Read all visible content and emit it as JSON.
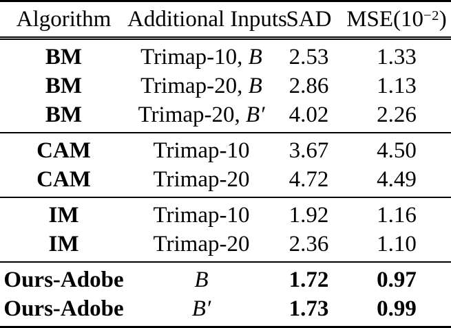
{
  "table": {
    "headers": {
      "algorithm": "Algorithm",
      "inputs": "Additional Inputs",
      "sad": "SAD",
      "mse_pre": "MSE(10",
      "mse_sup": "−2",
      "mse_post": ")"
    },
    "sections": [
      {
        "rows": [
          {
            "algorithm": "BM",
            "inputs_text": "Trimap-10, ",
            "inputs_math": "B",
            "sad": "2.53",
            "mse": "1.33"
          },
          {
            "algorithm": "BM",
            "inputs_text": "Trimap-20, ",
            "inputs_math": "B",
            "sad": "2.86",
            "mse": "1.13"
          },
          {
            "algorithm": "BM",
            "inputs_text": "Trimap-20, ",
            "inputs_math": "B′",
            "sad": "4.02",
            "mse": "2.26"
          }
        ]
      },
      {
        "rows": [
          {
            "algorithm": "CAM",
            "inputs_text": "Trimap-10",
            "sad": "3.67",
            "mse": "4.50"
          },
          {
            "algorithm": "CAM",
            "inputs_text": "Trimap-20",
            "sad": "4.72",
            "mse": "4.49"
          }
        ]
      },
      {
        "rows": [
          {
            "algorithm": "IM",
            "inputs_text": "Trimap-10",
            "sad": "1.92",
            "mse": "1.16"
          },
          {
            "algorithm": "IM",
            "inputs_text": "Trimap-20",
            "sad": "2.36",
            "mse": "1.10"
          }
        ]
      },
      {
        "rows": [
          {
            "algorithm": "Ours-Adobe",
            "inputs_math": "B",
            "sad": "1.72",
            "mse": "0.97"
          },
          {
            "algorithm": "Ours-Adobe",
            "inputs_math": "B′",
            "sad": "1.73",
            "mse": "0.99"
          }
        ]
      }
    ]
  }
}
